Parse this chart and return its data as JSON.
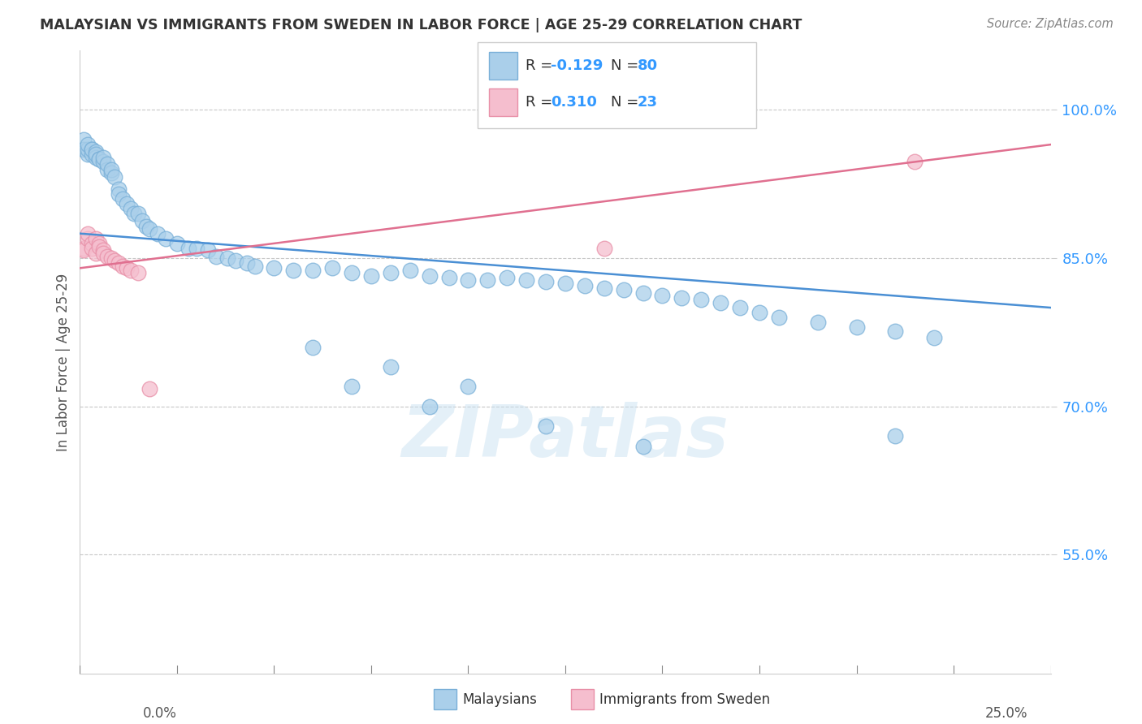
{
  "title": "MALAYSIAN VS IMMIGRANTS FROM SWEDEN IN LABOR FORCE | AGE 25-29 CORRELATION CHART",
  "source": "Source: ZipAtlas.com",
  "ylabel": "In Labor Force | Age 25-29",
  "ytick_vals": [
    0.55,
    0.7,
    0.85,
    1.0
  ],
  "xmin": 0.0,
  "xmax": 0.25,
  "ymin": 0.43,
  "ymax": 1.06,
  "R_blue": -0.129,
  "N_blue": 80,
  "R_pink": 0.31,
  "N_pink": 23,
  "blue_color": "#aacfea",
  "blue_edge": "#7ab0d8",
  "pink_color": "#f5bece",
  "pink_edge": "#e890a8",
  "blue_line_color": "#4a8fd4",
  "pink_line_color": "#e07090",
  "watermark": "ZIPatlas",
  "legend_label_blue": "Malaysians",
  "legend_label_pink": "Immigrants from Sweden",
  "blue_trend_x": [
    0.0,
    0.25
  ],
  "blue_trend_y": [
    0.875,
    0.8
  ],
  "pink_trend_x": [
    0.0,
    0.25
  ],
  "pink_trend_y": [
    0.84,
    0.965
  ],
  "blue_x": [
    0.001,
    0.001,
    0.002,
    0.002,
    0.002,
    0.003,
    0.003,
    0.003,
    0.004,
    0.004,
    0.004,
    0.005,
    0.005,
    0.006,
    0.006,
    0.007,
    0.007,
    0.008,
    0.008,
    0.009,
    0.01,
    0.01,
    0.011,
    0.012,
    0.013,
    0.014,
    0.015,
    0.016,
    0.017,
    0.018,
    0.02,
    0.022,
    0.025,
    0.028,
    0.03,
    0.033,
    0.035,
    0.038,
    0.04,
    0.043,
    0.045,
    0.05,
    0.055,
    0.06,
    0.065,
    0.07,
    0.075,
    0.08,
    0.085,
    0.09,
    0.095,
    0.1,
    0.105,
    0.11,
    0.115,
    0.12,
    0.125,
    0.13,
    0.135,
    0.14,
    0.145,
    0.15,
    0.155,
    0.16,
    0.165,
    0.17,
    0.175,
    0.18,
    0.19,
    0.2,
    0.21,
    0.22,
    0.06,
    0.08,
    0.1,
    0.12,
    0.145,
    0.07,
    0.09,
    0.21
  ],
  "blue_y": [
    0.97,
    0.96,
    0.955,
    0.96,
    0.965,
    0.96,
    0.955,
    0.96,
    0.958,
    0.952,
    0.955,
    0.95,
    0.95,
    0.948,
    0.952,
    0.94,
    0.945,
    0.936,
    0.94,
    0.932,
    0.92,
    0.915,
    0.91,
    0.905,
    0.9,
    0.895,
    0.895,
    0.888,
    0.882,
    0.88,
    0.875,
    0.87,
    0.865,
    0.86,
    0.86,
    0.858,
    0.852,
    0.85,
    0.848,
    0.845,
    0.842,
    0.84,
    0.838,
    0.838,
    0.84,
    0.835,
    0.832,
    0.835,
    0.838,
    0.832,
    0.83,
    0.828,
    0.828,
    0.83,
    0.828,
    0.826,
    0.825,
    0.822,
    0.82,
    0.818,
    0.815,
    0.812,
    0.81,
    0.808,
    0.805,
    0.8,
    0.795,
    0.79,
    0.785,
    0.78,
    0.776,
    0.77,
    0.76,
    0.74,
    0.72,
    0.68,
    0.66,
    0.72,
    0.7,
    0.67
  ],
  "pink_x": [
    0.001,
    0.001,
    0.002,
    0.002,
    0.003,
    0.003,
    0.004,
    0.004,
    0.005,
    0.005,
    0.006,
    0.006,
    0.007,
    0.008,
    0.009,
    0.01,
    0.011,
    0.012,
    0.013,
    0.015,
    0.018,
    0.135,
    0.215
  ],
  "pink_y": [
    0.86,
    0.858,
    0.87,
    0.875,
    0.865,
    0.86,
    0.855,
    0.87,
    0.865,
    0.862,
    0.858,
    0.855,
    0.852,
    0.85,
    0.848,
    0.845,
    0.842,
    0.84,
    0.838,
    0.835,
    0.718,
    0.86,
    0.948
  ]
}
